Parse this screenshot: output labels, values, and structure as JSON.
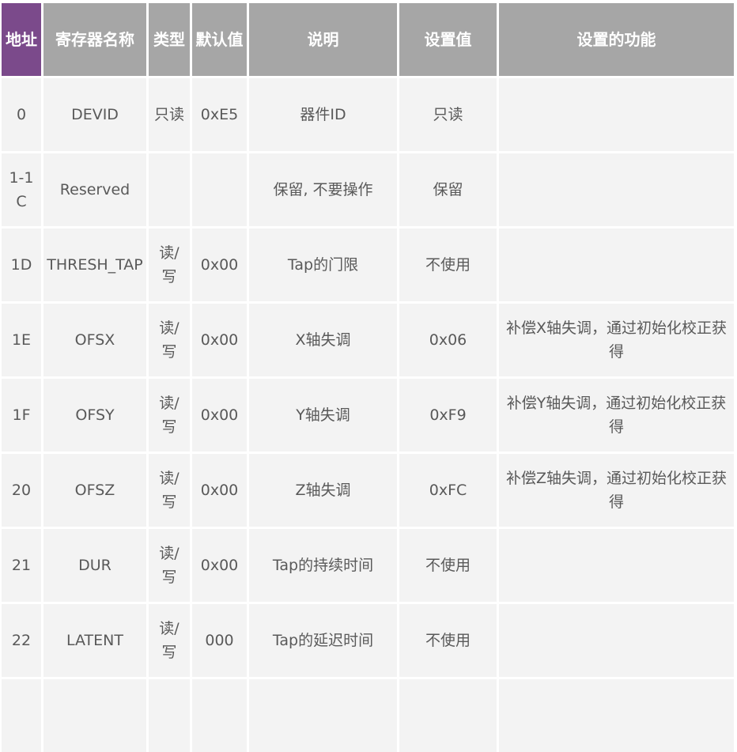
{
  "colors": {
    "accent_header": "#7b4a8b",
    "header": "#a6a6a6",
    "cell": "#f3f3f3"
  },
  "headers": [
    "地址",
    "寄存器名称",
    "类型",
    "默认值",
    "说明",
    "设置值",
    "设置的功能"
  ],
  "rows": [
    [
      "0",
      "DEVID",
      "只读",
      "0xE5",
      "器件ID",
      "只读",
      ""
    ],
    [
      "1-1C",
      "Reserved",
      "",
      "",
      "保留, 不要操作",
      "保留",
      ""
    ],
    [
      "1D",
      "THRESH_TAP",
      "读/写",
      "0x00",
      "Tap的门限",
      "不使用",
      ""
    ],
    [
      "1E",
      "OFSX",
      "读/写",
      "0x00",
      "X轴失调",
      "0x06",
      "补偿X轴失调，通过初始化校正获得"
    ],
    [
      "1F",
      "OFSY",
      "读/写",
      "0x00",
      "Y轴失调",
      "0xF9",
      "补偿Y轴失调，通过初始化校正获得"
    ],
    [
      "20",
      "OFSZ",
      "读/写",
      "0x00",
      "Z轴失调",
      "0xFC",
      "补偿Z轴失调，通过初始化校正获得"
    ],
    [
      "21",
      "DUR",
      "读/写",
      "0x00",
      "Tap的持续时间",
      "不使用",
      ""
    ],
    [
      "22",
      "LATENT",
      "读/写",
      "000",
      "Tap的延迟时间",
      "不使用",
      ""
    ],
    [
      "",
      "",
      "",
      "",
      "",
      "",
      ""
    ]
  ]
}
